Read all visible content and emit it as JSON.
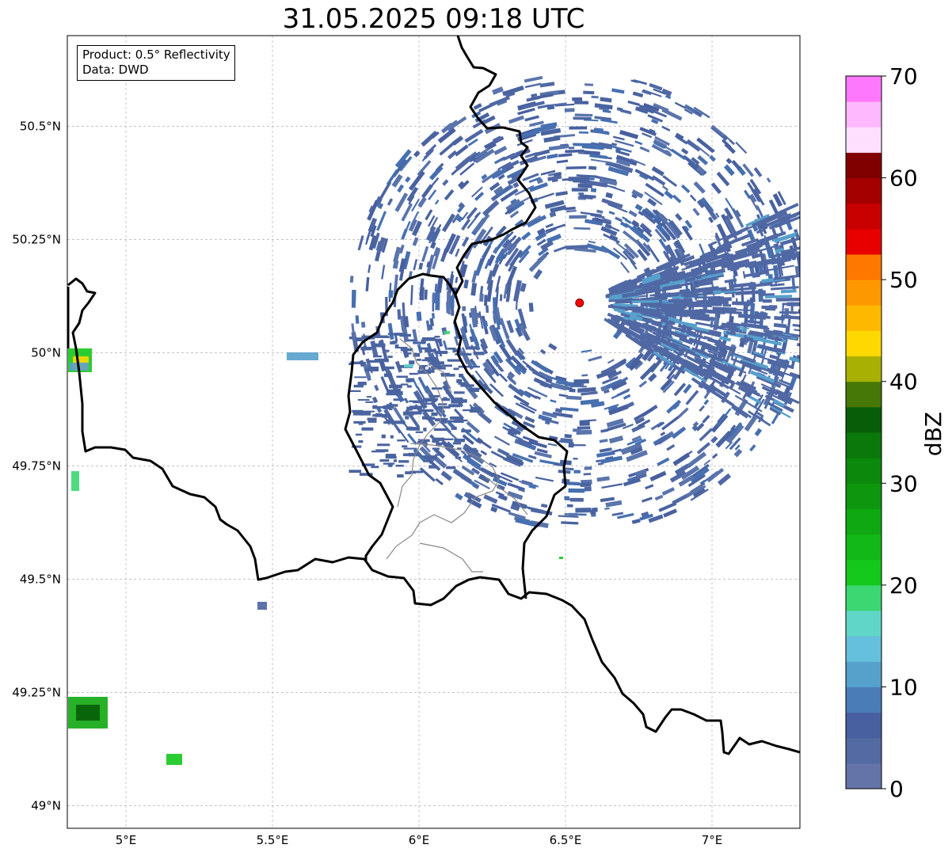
{
  "title": "31.05.2025 09:18 UTC",
  "info": {
    "product_line": "Product: 0.5° Reflectivity",
    "data_line": "Data: DWD"
  },
  "map": {
    "lon_range": [
      4.8,
      7.3
    ],
    "lat_range": [
      48.95,
      50.7
    ],
    "x_ticks": [
      {
        "value": 5.0,
        "label": "5°E"
      },
      {
        "value": 5.5,
        "label": "5.5°E"
      },
      {
        "value": 6.0,
        "label": "6°E"
      },
      {
        "value": 6.5,
        "label": "6.5°E"
      },
      {
        "value": 7.0,
        "label": "7°E"
      }
    ],
    "y_ticks": [
      {
        "value": 49.0,
        "label": "49°N"
      },
      {
        "value": 49.25,
        "label": "49.25°N"
      },
      {
        "value": 49.5,
        "label": "49.5°N"
      },
      {
        "value": 49.75,
        "label": "49.75°N"
      },
      {
        "value": 50.0,
        "label": "50°N"
      },
      {
        "value": 50.25,
        "label": "50.25°N"
      },
      {
        "value": 50.5,
        "label": "50.5°N"
      }
    ],
    "gridlines": true,
    "radar_site": {
      "lon": 6.548,
      "lat": 50.11,
      "color": "#ff0000"
    },
    "echo_color": "#4a64a0"
  },
  "colorbar": {
    "label": "dBZ",
    "min": 0,
    "max": 70,
    "step": 2.5,
    "tick_labels": [
      "0",
      "10",
      "20",
      "30",
      "40",
      "50",
      "60",
      "70"
    ],
    "colors": [
      "#6474a8",
      "#546aa2",
      "#4860a0",
      "#4a7cb8",
      "#56a0cc",
      "#64c0dc",
      "#60d6c8",
      "#3cd672",
      "#14c81c",
      "#12b818",
      "#10a812",
      "#0e960e",
      "#0c880c",
      "#0a780a",
      "#085e08",
      "#467808",
      "#a8b004",
      "#fed800",
      "#feb800",
      "#fe9800",
      "#fe7800",
      "#e80000",
      "#c80000",
      "#a40000",
      "#800000",
      "#fee0fe",
      "#feb8fe",
      "#fe78fe",
      "#ea38ea"
    ]
  }
}
